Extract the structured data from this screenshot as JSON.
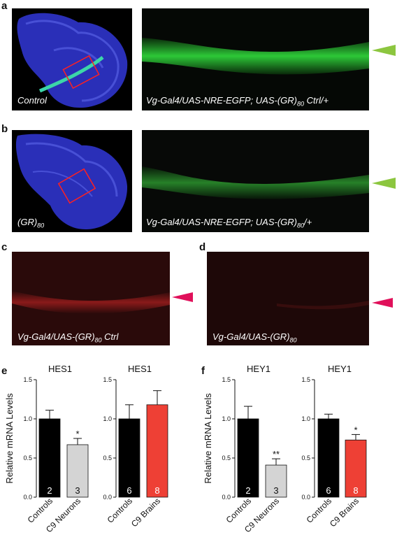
{
  "figure": {
    "panel_labels": [
      "a",
      "b",
      "c",
      "d",
      "e",
      "f"
    ],
    "a": {
      "wing_caption": "Control",
      "strip_caption_main": "Vg-Gal4/UAS-NRE-EGFP; UAS-(GR)",
      "strip_caption_sub": "80",
      "strip_caption_tail": " Ctrl/+"
    },
    "b": {
      "wing_caption_main": "(GR)",
      "wing_caption_sub": "80",
      "strip_caption_main": "Vg-Gal4/UAS-NRE-EGFP; UAS-(GR)",
      "strip_caption_sub": "80",
      "strip_caption_tail": "/+"
    },
    "c": {
      "caption_main": "Vg-Gal4/UAS-(GR)",
      "caption_sub": "80",
      "caption_tail": " Ctrl"
    },
    "d": {
      "caption_main": "Vg-Gal4/UAS-(GR)",
      "caption_sub": "80",
      "caption_tail": ""
    },
    "colors": {
      "green_arrow": "#8cc63f",
      "magenta_arrow": "#e0105a",
      "control_bar": "#000000",
      "neuron_bar": "#d4d4d4",
      "brain_bar": "#ee4035"
    }
  },
  "chart_data": [
    {
      "type": "bar",
      "title": "HES1",
      "ylabel": "Relative mRNA Levels",
      "ylim": [
        0,
        1.5
      ],
      "yticks": [
        "0.0",
        "0.5",
        "1.0",
        "1.5"
      ],
      "categories": [
        "Controls",
        "C9 Neurons"
      ],
      "values": [
        1.0,
        0.67
      ],
      "errors": [
        0.11,
        0.08
      ],
      "n": [
        "2",
        "3"
      ],
      "significance": [
        "",
        "*"
      ]
    },
    {
      "type": "bar",
      "title": "HES1",
      "ylabel": "",
      "ylim": [
        0,
        1.5
      ],
      "yticks": [
        "0.0",
        "0.5",
        "1.0",
        "1.5"
      ],
      "categories": [
        "Controls",
        "C9 Brains"
      ],
      "values": [
        1.0,
        1.18
      ],
      "errors": [
        0.18,
        0.18
      ],
      "n": [
        "6",
        "8"
      ],
      "significance": [
        "",
        ""
      ]
    },
    {
      "type": "bar",
      "title": "HEY1",
      "ylabel": "Relative mRNA Levels",
      "ylim": [
        0,
        1.5
      ],
      "yticks": [
        "0.0",
        "0.5",
        "1.0",
        "1.5"
      ],
      "categories": [
        "Controls",
        "C9 Neurons"
      ],
      "values": [
        1.0,
        0.41
      ],
      "errors": [
        0.16,
        0.08
      ],
      "n": [
        "2",
        "3"
      ],
      "significance": [
        "",
        "**"
      ]
    },
    {
      "type": "bar",
      "title": "HEY1",
      "ylabel": "",
      "ylim": [
        0,
        1.5
      ],
      "yticks": [
        "0.0",
        "0.5",
        "1.0",
        "1.5"
      ],
      "categories": [
        "Controls",
        "C9 Brains"
      ],
      "values": [
        1.0,
        0.73
      ],
      "errors": [
        0.06,
        0.07
      ],
      "n": [
        "6",
        "8"
      ],
      "significance": [
        "",
        "*"
      ]
    }
  ]
}
